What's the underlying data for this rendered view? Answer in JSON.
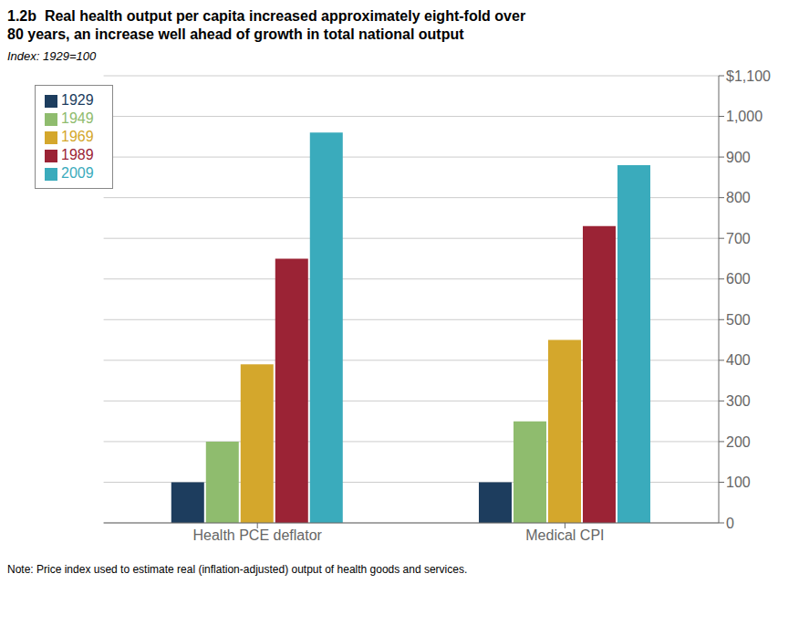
{
  "chart_data": {
    "type": "bar",
    "title": "1.2b  Real health output per capita increased approximately eight-fold over\n80 years, an increase well ahead of growth in total national output",
    "subtitle": "Index: 1929=100",
    "annotations": [
      "Note: Price index used to estimate real (inflation-adjusted) output of health goods and services."
    ],
    "categories": [
      "Health PCE deflator",
      "Medical CPI"
    ],
    "series": [
      {
        "name": "1929",
        "color": "#1d3d5e",
        "values": [
          100,
          100
        ]
      },
      {
        "name": "1949",
        "color": "#8fbc6e",
        "values": [
          200,
          250
        ]
      },
      {
        "name": "1969",
        "color": "#d4a72c",
        "values": [
          390,
          450
        ]
      },
      {
        "name": "1989",
        "color": "#9b2335",
        "values": [
          650,
          730
        ]
      },
      {
        "name": "2009",
        "color": "#3aabbc",
        "values": [
          960,
          880
        ]
      }
    ],
    "ylim": [
      0,
      1100
    ],
    "yticks": [
      0,
      100,
      200,
      300,
      400,
      500,
      600,
      700,
      800,
      900,
      {
        "value": 1000,
        "label": "1,000"
      },
      {
        "value": 1100,
        "label": "$1,100"
      }
    ],
    "grid": true,
    "legend": "upper left"
  }
}
